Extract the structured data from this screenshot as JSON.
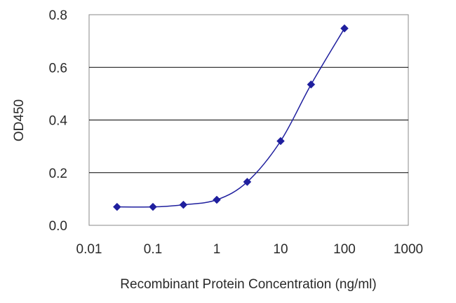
{
  "chart_data": {
    "type": "line",
    "title": "",
    "xlabel": "Recombinant Protein Concentration (ng/ml)",
    "ylabel": "OD450",
    "x_scale": "log",
    "xlim": [
      0.01,
      1000
    ],
    "ylim": [
      0,
      0.8
    ],
    "x_ticks": [
      "0.01",
      "0.1",
      "1",
      "10",
      "100",
      "1000"
    ],
    "y_ticks": [
      "0.0",
      "0.2",
      "0.4",
      "0.6",
      "0.8"
    ],
    "grid": "horizontal",
    "legend": "none",
    "series": [
      {
        "color": "#1f1f9e",
        "marker": "diamond",
        "x": [
          0.0274,
          0.1,
          0.3,
          1,
          3,
          10,
          30,
          100
        ],
        "y": [
          0.07,
          0.07,
          0.078,
          0.097,
          0.165,
          0.32,
          0.535,
          0.748
        ]
      }
    ],
    "plot_background": "#ffffff",
    "grid_color": "#000000"
  }
}
